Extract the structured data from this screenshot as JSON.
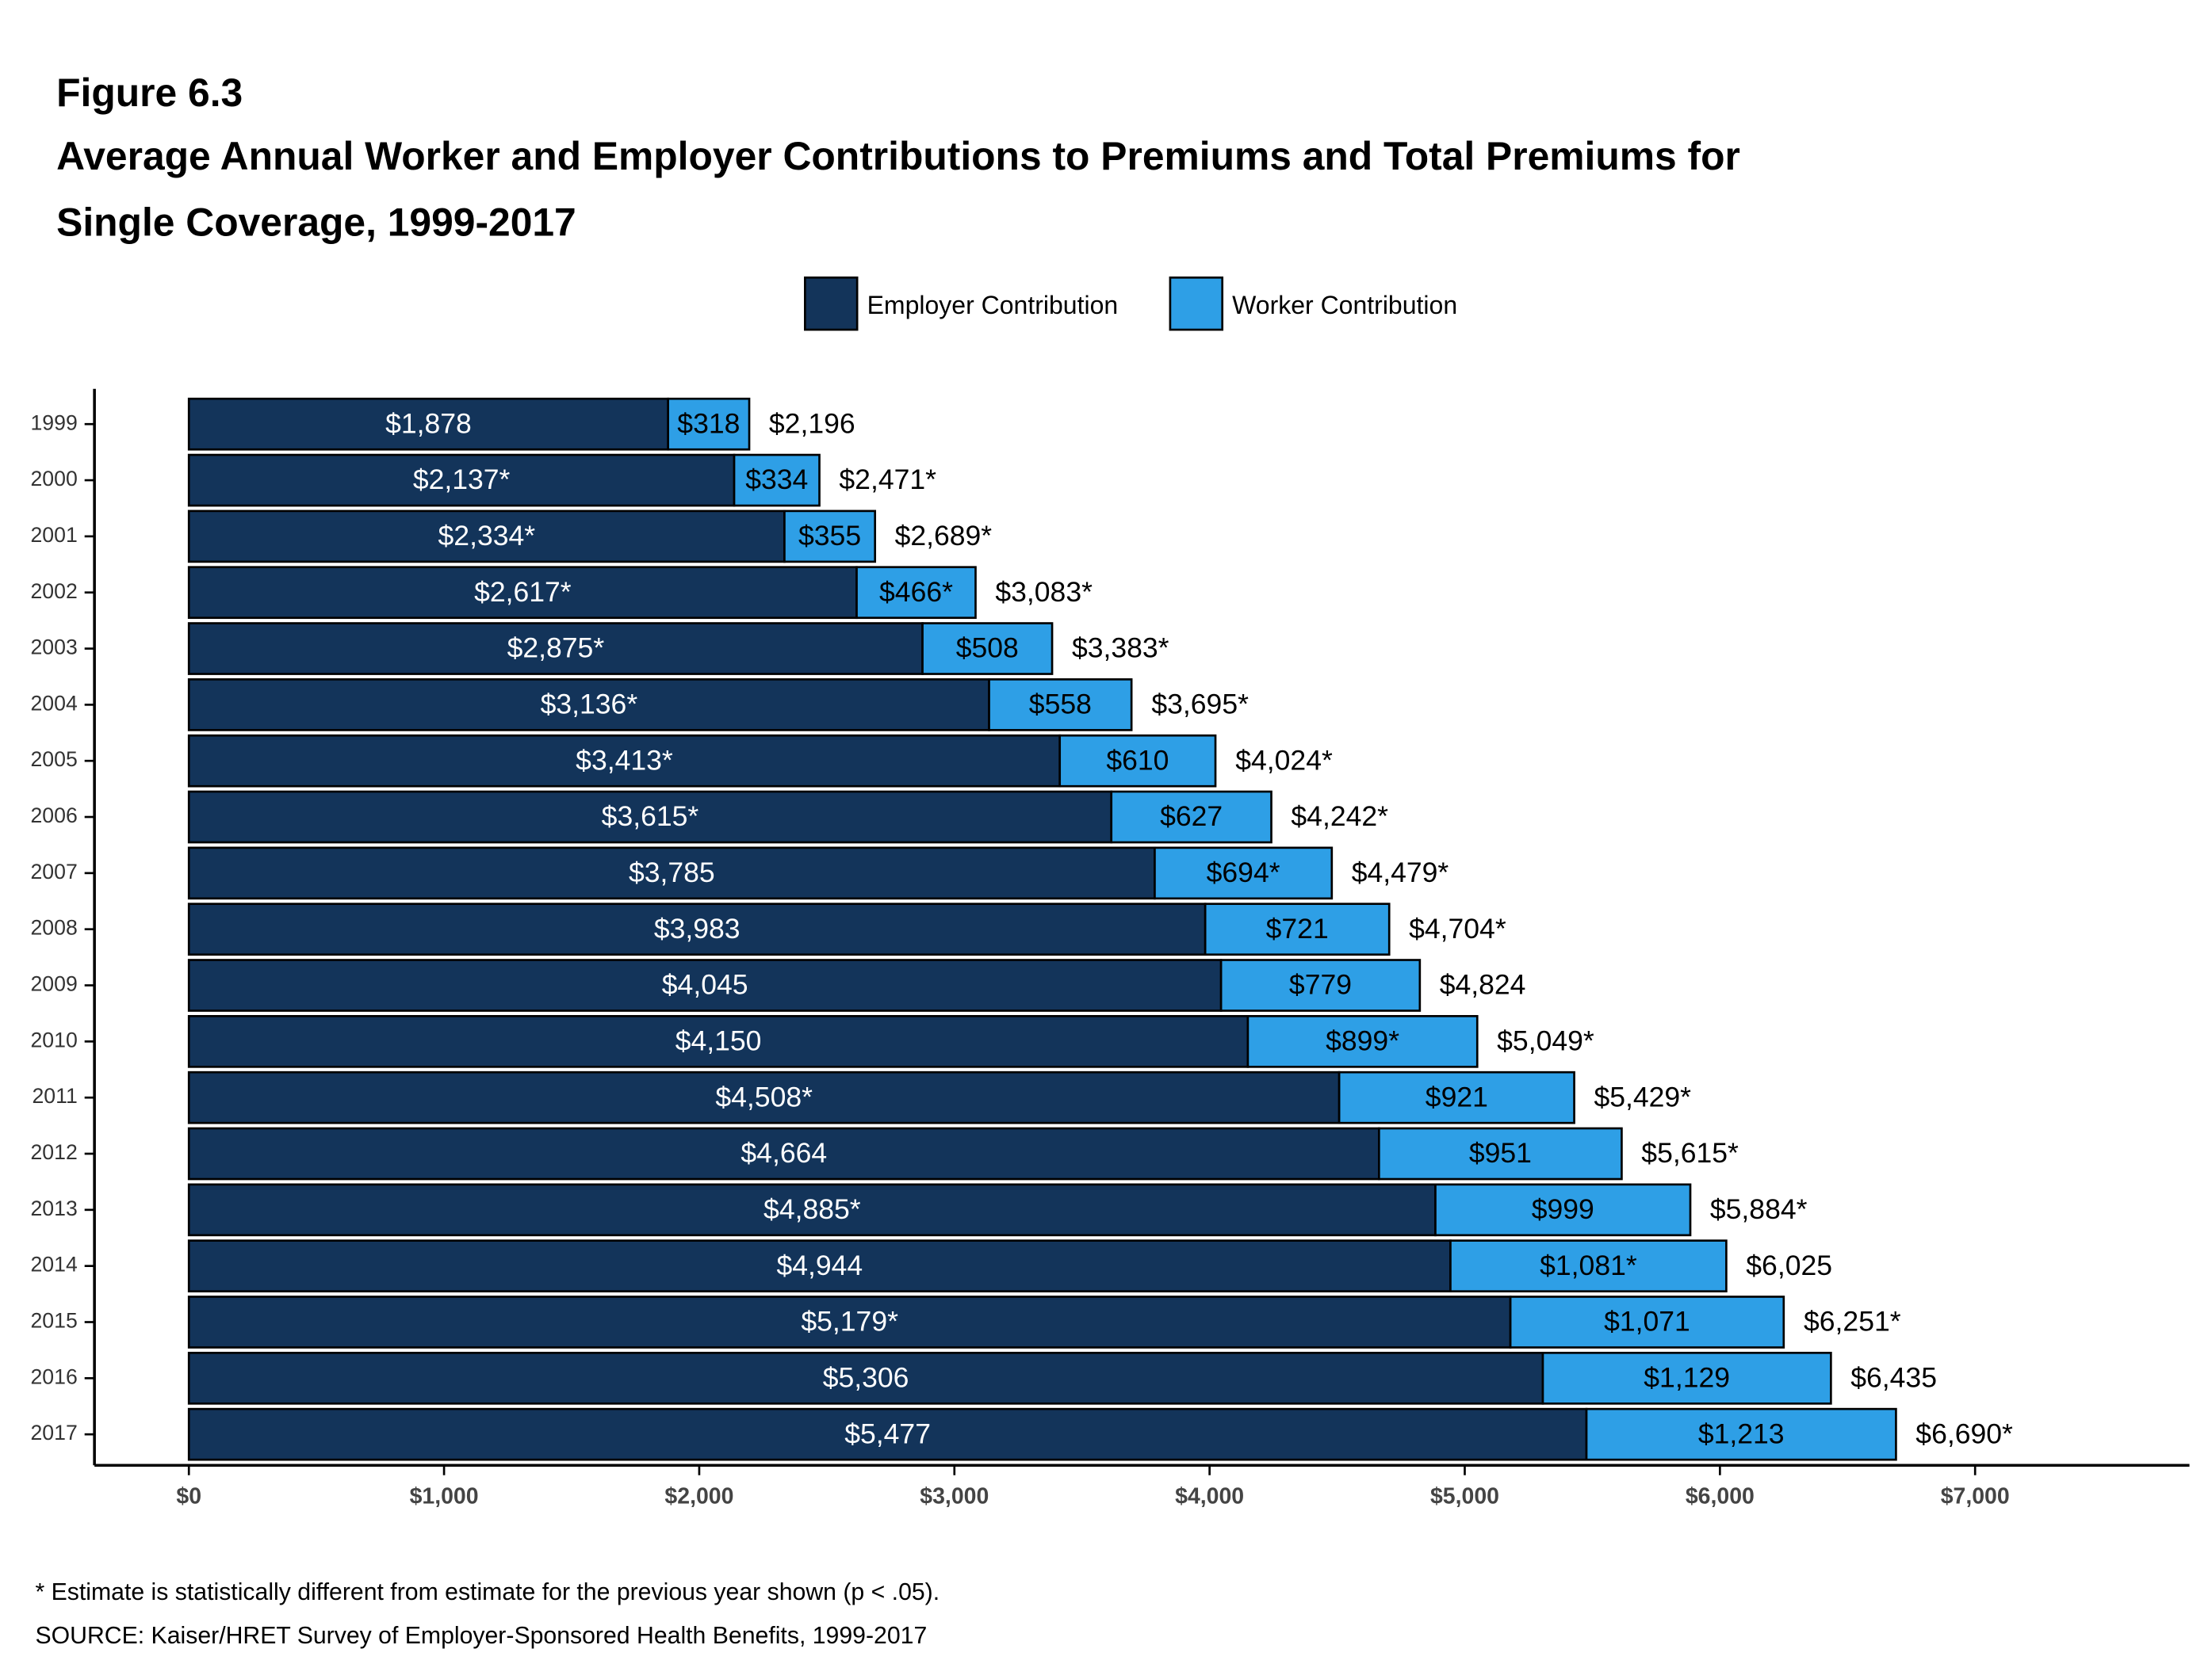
{
  "chart_data": {
    "type": "stacked-bar-horizontal",
    "figure": "Figure 6.3",
    "title": "Average Annual Worker and Employer Contributions to Premiums and Total Premiums for Single Coverage, 1999-2017",
    "categories": [
      "1999",
      "2000",
      "2001",
      "2002",
      "2003",
      "2004",
      "2005",
      "2006",
      "2007",
      "2008",
      "2009",
      "2010",
      "2011",
      "2012",
      "2013",
      "2014",
      "2015",
      "2016",
      "2017"
    ],
    "series": [
      {
        "name": "Employer Contribution",
        "color": "#13345a",
        "values": [
          1878,
          2137,
          2334,
          2617,
          2875,
          3136,
          3413,
          3615,
          3785,
          3983,
          4045,
          4150,
          4508,
          4664,
          4885,
          4944,
          5179,
          5306,
          5477
        ],
        "value_labels": [
          "$1,878",
          "$2,137*",
          "$2,334*",
          "$2,617*",
          "$2,875*",
          "$3,136*",
          "$3,413*",
          "$3,615*",
          "$3,785",
          "$3,983",
          "$4,045",
          "$4,150",
          "$4,508*",
          "$4,664",
          "$4,885*",
          "$4,944",
          "$5,179*",
          "$5,306",
          "$5,477"
        ]
      },
      {
        "name": "Worker Contribution",
        "color": "#2e9fe6",
        "values": [
          318,
          334,
          355,
          466,
          508,
          558,
          610,
          627,
          694,
          721,
          779,
          899,
          921,
          951,
          999,
          1081,
          1071,
          1129,
          1213
        ],
        "value_labels": [
          "$318",
          "$334",
          "$355",
          "$466*",
          "$508",
          "$558",
          "$610",
          "$627",
          "$694*",
          "$721",
          "$779",
          "$899*",
          "$921",
          "$951",
          "$999",
          "$1,081*",
          "$1,071",
          "$1,129",
          "$1,213"
        ]
      }
    ],
    "totals": {
      "values": [
        2196,
        2471,
        2689,
        3083,
        3383,
        3695,
        4024,
        4242,
        4479,
        4704,
        4824,
        5049,
        5429,
        5615,
        5884,
        6025,
        6251,
        6435,
        6690
      ],
      "value_labels": [
        "$2,196",
        "$2,471*",
        "$2,689*",
        "$3,083*",
        "$3,383*",
        "$3,695*",
        "$4,024*",
        "$4,242*",
        "$4,479*",
        "$4,704*",
        "$4,824",
        "$5,049*",
        "$5,429*",
        "$5,615*",
        "$5,884*",
        "$6,025",
        "$6,251*",
        "$6,435",
        "$6,690*"
      ]
    },
    "xlim": [
      -370,
      7840
    ],
    "xticks": [
      {
        "value": 0,
        "label": "$0"
      },
      {
        "value": 1000,
        "label": "$1,000"
      },
      {
        "value": 2000,
        "label": "$2,000"
      },
      {
        "value": 3000,
        "label": "$3,000"
      },
      {
        "value": 4000,
        "label": "$4,000"
      },
      {
        "value": 5000,
        "label": "$5,000"
      },
      {
        "value": 6000,
        "label": "$6,000"
      },
      {
        "value": 7000,
        "label": "$7,000"
      }
    ],
    "legend": "top",
    "footnote": "* Estimate is statistically different from estimate for the previous year shown (p < .05).",
    "source": "SOURCE: Kaiser/HRET Survey of Employer-Sponsored Health Benefits, 1999-2017"
  }
}
